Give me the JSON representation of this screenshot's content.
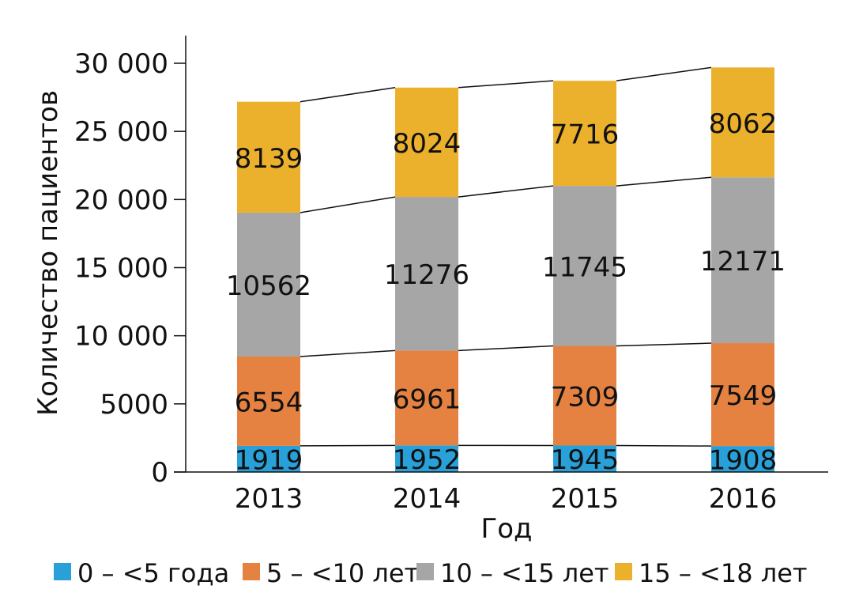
{
  "chart_data": {
    "type": "bar",
    "stacked": true,
    "title": "",
    "xlabel": "Год",
    "ylabel": "Количество пациентов",
    "ylim": [
      0,
      30000
    ],
    "yticks": [
      0,
      5000,
      10000,
      15000,
      20000,
      25000,
      30000
    ],
    "ytick_labels": [
      "0",
      "5000",
      "10 000",
      "15 000",
      "20 000",
      "25 000",
      "30 000"
    ],
    "categories": [
      "2013",
      "2014",
      "2015",
      "2016"
    ],
    "series": [
      {
        "name": "0 – <5 года",
        "color": "#29a0d8",
        "values": [
          1919,
          1952,
          1945,
          1908
        ]
      },
      {
        "name": "5 – <10 лет",
        "color": "#e58242",
        "values": [
          6554,
          6961,
          7309,
          7549
        ]
      },
      {
        "name": "10 – <15 лет",
        "color": "#a6a6a6",
        "values": [
          10562,
          11276,
          11745,
          12171
        ]
      },
      {
        "name": "15 – <18 лет",
        "color": "#ecb12c",
        "values": [
          8139,
          8024,
          7716,
          8062
        ]
      }
    ],
    "legend_position": "bottom",
    "grid": false,
    "connector_lines": true
  }
}
